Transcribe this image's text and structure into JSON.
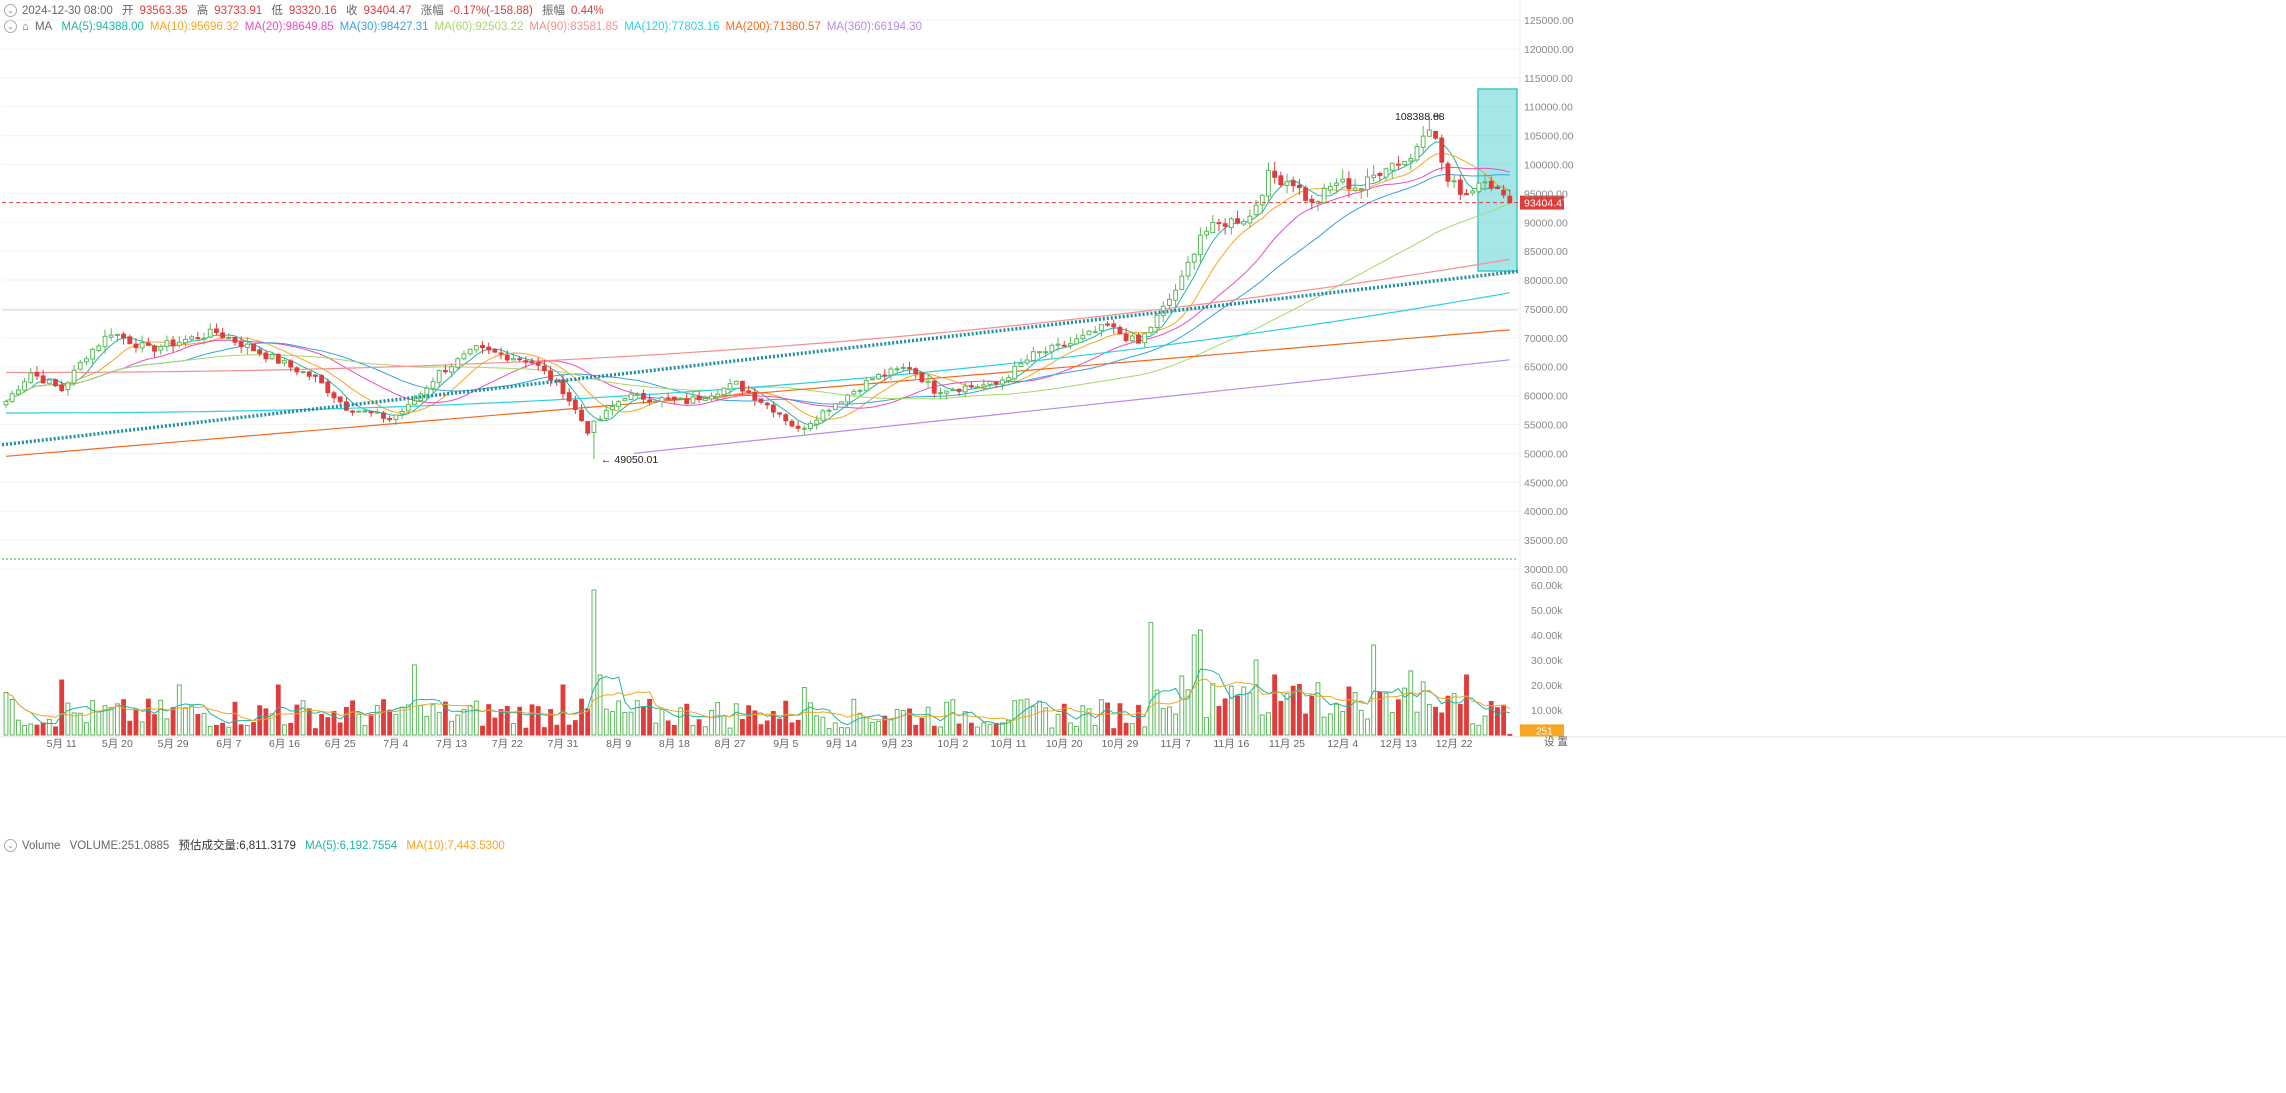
{
  "header": {
    "date": "2024-12-30 08:00",
    "open_label": "开",
    "open": "93563.35",
    "high_label": "高",
    "high": "93733.91",
    "low_label": "低",
    "low": "93320.16",
    "close_label": "收",
    "close": "93404.47",
    "change_label": "涨幅",
    "change": "-0.17%(-158.88)",
    "amplitude_label": "振幅",
    "amplitude": "0.44%"
  },
  "ma_legend": {
    "title": "MA",
    "items": [
      {
        "label": "MA(5):94388.00",
        "color": "#1fb5a0"
      },
      {
        "label": "MA(10):95696.32",
        "color": "#f5a623"
      },
      {
        "label": "MA(20):98649.85",
        "color": "#e84dbf"
      },
      {
        "label": "MA(30):98427.31",
        "color": "#3aa2e0"
      },
      {
        "label": "MA(60):92503.22",
        "color": "#a6d86b"
      },
      {
        "label": "MA(90):83581.85",
        "color": "#f58f8f"
      },
      {
        "label": "MA(120):77803.16",
        "color": "#2fd0e0"
      },
      {
        "label": "MA(200):71380.57",
        "color": "#f26a1b"
      },
      {
        "label": "MA(360):66194.30",
        "color": "#b98be8"
      }
    ]
  },
  "volume_legend": {
    "title": "Volume",
    "volume": "VOLUME:251.0885",
    "estimate": "预估成交量:6,811.3179",
    "ma5": "MA(5):6,192.7554",
    "ma10": "MA(10):7,443.5300",
    "ma5_color": "#1fb5a0",
    "ma10_color": "#f5a623"
  },
  "annotations": {
    "high_marker": "108388.88",
    "low_marker": "← 49050.01",
    "last_price_tag": "93404.47",
    "volume_tag": "251"
  },
  "price_axis": {
    "ticks": [
      "125000.00",
      "120000.00",
      "115000.00",
      "110000.00",
      "105000.00",
      "100000.00",
      "95000.00",
      "90000.00",
      "85000.00",
      "80000.00",
      "75000.00",
      "70000.00",
      "65000.00",
      "60000.00",
      "55000.00",
      "50000.00",
      "45000.00",
      "40000.00",
      "35000.00",
      "30000.00"
    ]
  },
  "volume_axis": {
    "ticks": [
      "60.00k",
      "50.00k",
      "40.00k",
      "30.00k",
      "20.00k",
      "10.00k"
    ]
  },
  "date_axis": {
    "labels": [
      "5月 11",
      "5月 20",
      "5月 29",
      "6月 7",
      "6月 16",
      "6月 25",
      "7月 4",
      "7月 13",
      "7月 22",
      "7月 31",
      "8月 9",
      "8月 18",
      "8月 27",
      "9月 5",
      "9月 14",
      "9月 23",
      "10月 2",
      "10月 11",
      "10月 20",
      "10月 29",
      "11月 7",
      "11月 16",
      "11月 25",
      "12月 4",
      "12月 13",
      "12月 22"
    ],
    "corner_text": "设 置"
  },
  "colors": {
    "up": "#5cb85c",
    "down": "#e03c3c",
    "last_price_line": "#e03c3c",
    "trendline": "#1f8fa0",
    "highlight_box": "#3cc8c8"
  },
  "chart_data": [
    {
      "type": "candlestick",
      "title": "",
      "x_start": "2024-05-02",
      "x_end": "2024-12-30",
      "ylim": [
        30000,
        125000
      ],
      "anchors": [
        {
          "day": 0,
          "close": 59000
        },
        {
          "day": 4,
          "close": 64000
        },
        {
          "day": 9,
          "close": 61000
        },
        {
          "day": 13,
          "close": 67000
        },
        {
          "day": 17,
          "close": 71000
        },
        {
          "day": 23,
          "close": 68000
        },
        {
          "day": 34,
          "close": 71000
        },
        {
          "day": 40,
          "close": 68000
        },
        {
          "day": 50,
          "close": 63000
        },
        {
          "day": 55,
          "close": 58000
        },
        {
          "day": 62,
          "close": 56000
        },
        {
          "day": 65,
          "close": 58000
        },
        {
          "day": 70,
          "close": 64000
        },
        {
          "day": 76,
          "close": 68000
        },
        {
          "day": 85,
          "close": 66000
        },
        {
          "day": 90,
          "close": 61000
        },
        {
          "day": 94,
          "close": 54000
        },
        {
          "day": 96,
          "close": 56000
        },
        {
          "day": 100,
          "close": 60000
        },
        {
          "day": 110,
          "close": 59000
        },
        {
          "day": 118,
          "close": 62000
        },
        {
          "day": 125,
          "close": 57000
        },
        {
          "day": 128,
          "close": 54000
        },
        {
          "day": 133,
          "close": 58000
        },
        {
          "day": 140,
          "close": 63000
        },
        {
          "day": 146,
          "close": 65000
        },
        {
          "day": 150,
          "close": 61000
        },
        {
          "day": 160,
          "close": 62000
        },
        {
          "day": 166,
          "close": 67000
        },
        {
          "day": 172,
          "close": 69000
        },
        {
          "day": 178,
          "close": 72000
        },
        {
          "day": 183,
          "close": 69000
        },
        {
          "day": 187,
          "close": 75000
        },
        {
          "day": 190,
          "close": 80000
        },
        {
          "day": 193,
          "close": 88000
        },
        {
          "day": 197,
          "close": 90000
        },
        {
          "day": 201,
          "close": 91000
        },
        {
          "day": 204,
          "close": 98000
        },
        {
          "day": 208,
          "close": 97000
        },
        {
          "day": 211,
          "close": 93000
        },
        {
          "day": 215,
          "close": 97000
        },
        {
          "day": 219,
          "close": 96000
        },
        {
          "day": 223,
          "close": 100000
        },
        {
          "day": 227,
          "close": 101000
        },
        {
          "day": 229,
          "close": 106000
        },
        {
          "day": 230,
          "close": 107000
        },
        {
          "day": 231,
          "close": 104000
        },
        {
          "day": 233,
          "close": 97000
        },
        {
          "day": 236,
          "close": 95000
        },
        {
          "day": 239,
          "close": 98000
        },
        {
          "day": 242,
          "close": 94000
        },
        {
          "day": 243,
          "close": 93404
        }
      ],
      "extremes": {
        "high": 108388.88,
        "low": 49050.01
      },
      "last_close": 93404.47,
      "ma_series_endpoints": {
        "MA(5)": 94388.0,
        "MA(10)": 95696.32,
        "MA(20)": 98649.85,
        "MA(30)": 98427.31,
        "MA(60)": 92503.22,
        "MA(90)": 83581.85,
        "MA(120)": 77803.16,
        "MA(200)": 71380.57,
        "MA(360)": 66194.3
      }
    },
    {
      "type": "bar",
      "title": "Volume",
      "ylim": [
        0,
        62000
      ],
      "notable": [
        {
          "day": 0,
          "value": 17000
        },
        {
          "day": 9,
          "value": 22000
        },
        {
          "day": 28,
          "value": 20000
        },
        {
          "day": 44,
          "value": 20000
        },
        {
          "day": 66,
          "value": 28000
        },
        {
          "day": 90,
          "value": 20000
        },
        {
          "day": 95,
          "value": 58000
        },
        {
          "day": 96,
          "value": 24000
        },
        {
          "day": 129,
          "value": 19000
        },
        {
          "day": 185,
          "value": 45000
        },
        {
          "day": 192,
          "value": 40000
        },
        {
          "day": 193,
          "value": 42000
        },
        {
          "day": 202,
          "value": 30000
        },
        {
          "day": 221,
          "value": 36000
        },
        {
          "day": 236,
          "value": 24000
        },
        {
          "day": 243,
          "value": 251
        }
      ]
    }
  ]
}
